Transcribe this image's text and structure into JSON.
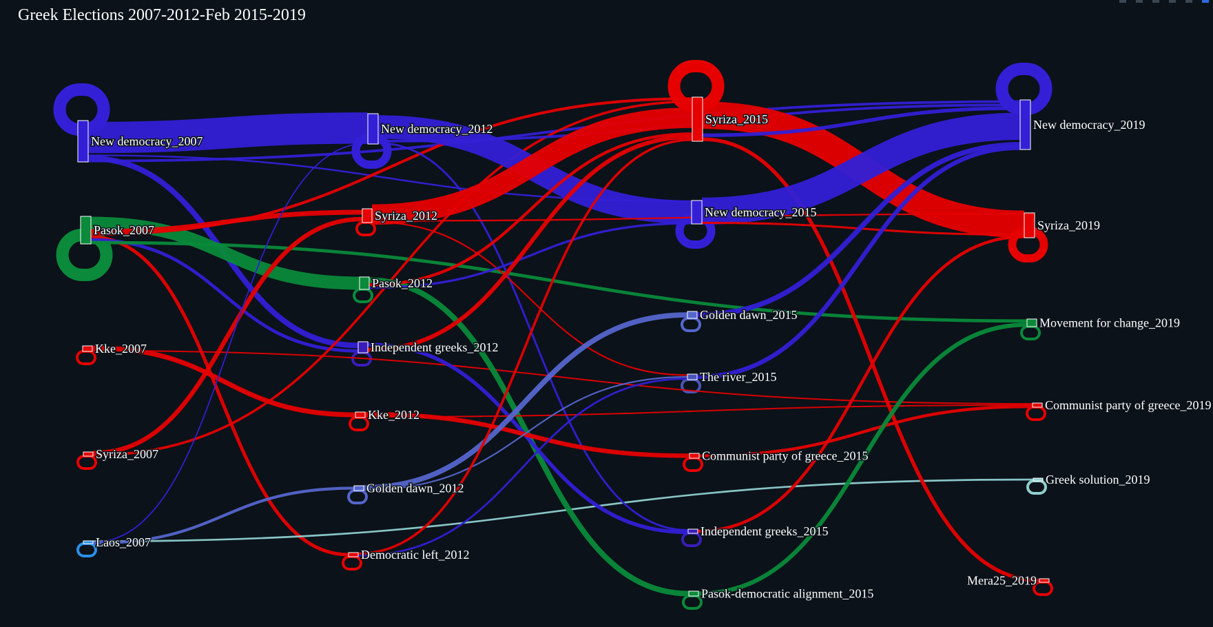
{
  "title": "Greek Elections 2007-2012-Feb 2015-2019",
  "chart_data": {
    "type": "sankey",
    "title": "Greek Elections 2007-2012-Feb 2015-2019",
    "nodes": [
      {
        "id": "nd07",
        "label": "New democracy_2007",
        "color": "#3320d6"
      },
      {
        "id": "pa07",
        "label": "Pasok_2007",
        "color": "#0a8a3a"
      },
      {
        "id": "kk07",
        "label": "Kke_2007",
        "color": "#e60000"
      },
      {
        "id": "sy07",
        "label": "Syriza_2007",
        "color": "#e60000"
      },
      {
        "id": "la07",
        "label": "Laos_2007",
        "color": "#2a8fe6"
      },
      {
        "id": "nd12",
        "label": "New democracy_2012",
        "color": "#3320d6"
      },
      {
        "id": "sy12",
        "label": "Syriza_2012",
        "color": "#e60000"
      },
      {
        "id": "pa12",
        "label": "Pasok_2012",
        "color": "#0a8a3a"
      },
      {
        "id": "ig12",
        "label": "Independent greeks_2012",
        "color": "#3a1db8"
      },
      {
        "id": "kk12",
        "label": "Kke_2012",
        "color": "#e60000"
      },
      {
        "id": "gd12",
        "label": "Golden dawn_2012",
        "color": "#5566cc"
      },
      {
        "id": "dl12",
        "label": "Democratic left_2012",
        "color": "#e60000"
      },
      {
        "id": "sy15",
        "label": "Syriza_2015",
        "color": "#e60000"
      },
      {
        "id": "nd15",
        "label": "New democracy_2015",
        "color": "#3320d6"
      },
      {
        "id": "gd15",
        "label": "Golden dawn_2015",
        "color": "#5566cc"
      },
      {
        "id": "tr15",
        "label": "The river_2015",
        "color": "#4a55b8"
      },
      {
        "id": "kk15",
        "label": "Communist party of greece_2015",
        "color": "#e60000"
      },
      {
        "id": "ig15",
        "label": "Independent greeks_2015",
        "color": "#3a1db8"
      },
      {
        "id": "pda15",
        "label": "Pasok-democratic alignment_2015",
        "color": "#0a8a3a"
      },
      {
        "id": "nd19",
        "label": "New democracy_2019",
        "color": "#3320d6"
      },
      {
        "id": "sy19",
        "label": "Syriza_2019",
        "color": "#e60000"
      },
      {
        "id": "mc19",
        "label": "Movement for change_2019",
        "color": "#0a8a3a"
      },
      {
        "id": "kk19",
        "label": "Communist party of greece_2019",
        "color": "#e60000"
      },
      {
        "id": "gs19",
        "label": "Greek solution_2019",
        "color": "#8fcfd0"
      },
      {
        "id": "mr19",
        "label": "Mera25_2019",
        "color": "#e60000"
      }
    ],
    "links": [
      {
        "source": "nd07",
        "target": "nd12",
        "value": 18,
        "color": "#3320d6"
      },
      {
        "source": "nd07",
        "target": "nd15",
        "value": 1,
        "color": "#3320d6"
      },
      {
        "source": "nd07",
        "target": "ig12",
        "value": 2,
        "color": "#3320d6"
      },
      {
        "source": "nd07",
        "target": "nd19",
        "value": 1,
        "color": "#3320d6"
      },
      {
        "source": "pa07",
        "target": "pa12",
        "value": 5,
        "color": "#0a8a3a"
      },
      {
        "source": "pa07",
        "target": "sy12",
        "value": 1,
        "color": "#e60000"
      },
      {
        "source": "pa07",
        "target": "sy15",
        "value": 1,
        "color": "#e60000"
      },
      {
        "source": "pa07",
        "target": "dl12",
        "value": 1,
        "color": "#e60000"
      },
      {
        "source": "pa07",
        "target": "ig12",
        "value": 1,
        "color": "#3320d6"
      },
      {
        "source": "pa07",
        "target": "mc19",
        "value": 1,
        "color": "#0a8a3a"
      },
      {
        "source": "kk07",
        "target": "kk12",
        "value": 3,
        "color": "#e60000"
      },
      {
        "source": "kk07",
        "target": "kk19",
        "value": 1,
        "color": "#e60000"
      },
      {
        "source": "sy07",
        "target": "sy12",
        "value": 1,
        "color": "#e60000"
      },
      {
        "source": "sy07",
        "target": "sy15",
        "value": 1,
        "color": "#e60000"
      },
      {
        "source": "la07",
        "target": "gs19",
        "value": 1,
        "color": "#8fcfd0"
      },
      {
        "source": "la07",
        "target": "nd12",
        "value": 1,
        "color": "#3320d6"
      },
      {
        "source": "la07",
        "target": "gd12",
        "value": 1,
        "color": "#5566cc"
      },
      {
        "source": "nd12",
        "target": "nd15",
        "value": 14,
        "color": "#3320d6"
      },
      {
        "source": "nd12",
        "target": "nd19",
        "value": 1,
        "color": "#3320d6"
      },
      {
        "source": "nd12",
        "target": "ig15",
        "value": 1,
        "color": "#3320d6"
      },
      {
        "source": "sy12",
        "target": "sy15",
        "value": 10,
        "color": "#e60000"
      },
      {
        "source": "sy12",
        "target": "sy19",
        "value": 1,
        "color": "#e60000"
      },
      {
        "source": "sy12",
        "target": "tr15",
        "value": 1,
        "color": "#e60000"
      },
      {
        "source": "pa12",
        "target": "pda15",
        "value": 2,
        "color": "#0a8a3a"
      },
      {
        "source": "pa12",
        "target": "sy15",
        "value": 1,
        "color": "#e60000"
      },
      {
        "source": "pa12",
        "target": "nd15",
        "value": 1,
        "color": "#3320d6"
      },
      {
        "source": "ig12",
        "target": "ig15",
        "value": 1,
        "color": "#3320d6"
      },
      {
        "source": "ig12",
        "target": "sy15",
        "value": 1,
        "color": "#e60000"
      },
      {
        "source": "kk12",
        "target": "kk15",
        "value": 3,
        "color": "#e60000"
      },
      {
        "source": "kk12",
        "target": "kk19",
        "value": 1,
        "color": "#e60000"
      },
      {
        "source": "gd12",
        "target": "gd15",
        "value": 3,
        "color": "#5566cc"
      },
      {
        "source": "gd12",
        "target": "tr15",
        "value": 1,
        "color": "#5566cc"
      },
      {
        "source": "dl12",
        "target": "sy15",
        "value": 1,
        "color": "#e60000"
      },
      {
        "source": "dl12",
        "target": "tr15",
        "value": 1,
        "color": "#3320d6"
      },
      {
        "source": "sy15",
        "target": "sy19",
        "value": 9,
        "color": "#e60000"
      },
      {
        "source": "sy15",
        "target": "nd19",
        "value": 1,
        "color": "#3320d6"
      },
      {
        "source": "sy15",
        "target": "mr19",
        "value": 1,
        "color": "#e60000"
      },
      {
        "source": "nd15",
        "target": "nd19",
        "value": 10,
        "color": "#3320d6"
      },
      {
        "source": "nd15",
        "target": "sy19",
        "value": 1,
        "color": "#e60000"
      },
      {
        "source": "gd15",
        "target": "nd19",
        "value": 1,
        "color": "#3320d6"
      },
      {
        "source": "tr15",
        "target": "nd19",
        "value": 1,
        "color": "#3320d6"
      },
      {
        "source": "kk15",
        "target": "kk19",
        "value": 1,
        "color": "#e60000"
      },
      {
        "source": "ig15",
        "target": "sy19",
        "value": 1,
        "color": "#e60000"
      },
      {
        "source": "pda15",
        "target": "mc19",
        "value": 1,
        "color": "#0a8a3a"
      }
    ]
  }
}
